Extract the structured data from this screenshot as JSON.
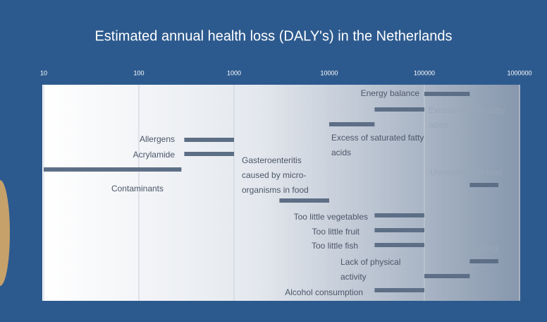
{
  "chart_data": {
    "type": "range-bar",
    "title": "Estimated annual health loss (DALY's) in the Netherlands",
    "log_x": true,
    "xlim": [
      10,
      1000000
    ],
    "xticks": [
      10,
      100,
      1000,
      10000,
      100000,
      1000000
    ],
    "grid": true,
    "color": "#5d6f86",
    "categories": [
      "Energy balance",
      "Excess of trans fatty acids",
      "Excess of saturated fatty acids",
      "Allergens",
      "Acrylamide",
      "Contaminants",
      "Unhealthy diet total",
      "Gasteroenteritis caused by micro-organisms in food",
      "Too little vegetables",
      "Too little fruit",
      "Too little fish",
      "Smoking",
      "Lack of physical activity",
      "Alcohol consumption"
    ],
    "values": [
      [
        100000,
        300000
      ],
      [
        30000,
        100000
      ],
      [
        10000,
        30000
      ],
      [
        300,
        1000
      ],
      [
        300,
        1000
      ],
      [
        10,
        280
      ],
      [
        300000,
        600000
      ],
      [
        3000,
        10000
      ],
      [
        30000,
        100000
      ],
      [
        30000,
        100000
      ],
      [
        30000,
        100000
      ],
      [
        300000,
        600000
      ],
      [
        100000,
        300000
      ],
      [
        30000,
        100000
      ]
    ]
  }
}
